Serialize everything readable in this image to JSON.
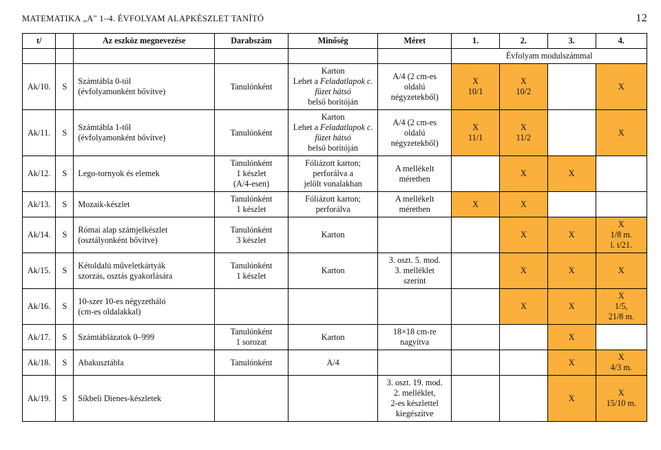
{
  "header": {
    "left": "MATEMATIKA „A\" 1–4. ÉVFOLYAM ALAPKÉSZLET TANÍTÓ",
    "page": "12"
  },
  "columns": {
    "c0": "t/",
    "c1": "",
    "c2": "Az eszköz megnevezése",
    "c3": "Darabszám",
    "c4": "Minőség",
    "c5": "Méret",
    "c6": "1.",
    "c7": "2.",
    "c8": "3.",
    "c9": "4."
  },
  "super_marks": "Évfolyam modulszámmal",
  "rows": [
    {
      "code": "Ak/10.",
      "cat": "S",
      "name": "Számtábla 0-tól\n(évfolyamonként bővítve)",
      "qty": "Tanulónként",
      "quality": "Karton\nLehet a Feladatlapok c. füzet hátsó\nbelső borítóján",
      "size": "A/4 (2 cm-es\noldalú\nnégyzetekből)",
      "m1": "X\n10/1",
      "m2": "X\n10/2",
      "m3": "",
      "m4": "X"
    },
    {
      "code": "Ak/11.",
      "cat": "S",
      "name": "Számtábla 1-től\n(évfolyamonként bővítve)",
      "qty": "Tanulónként",
      "quality": "Karton\nLehet a Feladatlapok c. füzet hátsó\nbelső borítóján",
      "size": "A/4 (2 cm-es\noldalú\nnégyzetekből)",
      "m1": "X\n11/1",
      "m2": "X\n11/2",
      "m3": "",
      "m4": "X"
    },
    {
      "code": "Ak/12.",
      "cat": "S",
      "name": "Lego-tornyok és elemek",
      "qty": "Tanulónként\n1 készlet\n(A/4-esen)",
      "quality": "Fóliázott karton;\nperforálva a\njelölt vonalakban",
      "size": "A mellékelt\nméretben",
      "m1": "",
      "m2": "X",
      "m3": "X",
      "m4": ""
    },
    {
      "code": "Ak/13.",
      "cat": "S",
      "name": "Mozaik-készlet",
      "qty": "Tanulónként\n1 készlet",
      "quality": "Fóliázott karton;\nperforálva",
      "size": "A mellékelt\nméretben",
      "m1": "X",
      "m2": "X",
      "m3": "",
      "m4": ""
    },
    {
      "code": "Ak/14.",
      "cat": "S",
      "name": "Római alap számjelkészlet\n(osztályonként bővítve)",
      "qty": "Tanulónként\n3 készlet",
      "quality": "Karton",
      "size": "",
      "m1": "",
      "m2": "X",
      "m3": "X",
      "m4": "X\n1/8 m.\nl. t/21."
    },
    {
      "code": "Ak/15.",
      "cat": "S",
      "name": "Kétoldalú műveletkártyák\nszorzás, osztás gyakorlására",
      "qty": "Tanulónként\n1 készlet",
      "quality": "Karton",
      "size": "3. oszt. 5. mod.\n3. melléklet\nszerint",
      "m1": "",
      "m2": "X",
      "m3": "X",
      "m4": "X"
    },
    {
      "code": "Ak/16.",
      "cat": "S",
      "name": "10-szer 10-es négyzetháló\n(cm-es oldalakkal)",
      "qty": "",
      "quality": "",
      "size": "",
      "m1": "",
      "m2": "X",
      "m3": "X",
      "m4": "X\n1/5,\n21/8 m."
    },
    {
      "code": "Ak/17.",
      "cat": "S",
      "name": "Számtáblázatok 0–999",
      "qty": "Tanulónként\n1 sorozat",
      "quality": "Karton",
      "size": "18×18 cm-re\nnagyítva",
      "m1": "",
      "m2": "",
      "m3": "X",
      "m4": ""
    },
    {
      "code": "Ak/18.",
      "cat": "S",
      "name": "Abakusztábla",
      "qty": "Tanulónként",
      "quality": "A/4",
      "size": "",
      "m1": "",
      "m2": "",
      "m3": "X",
      "m4": "X\n4/3 m."
    },
    {
      "code": "Ak/19.",
      "cat": "S",
      "name": "Síkbeli Dienes-készletek",
      "qty": "",
      "quality": "",
      "size": "3. oszt. 19. mod.\n2. melléklet,\n2-es készlettel\nkiegészítve",
      "m1": "",
      "m2": "",
      "m3": "X",
      "m4": "X\n15/10 m."
    }
  ],
  "styles": {
    "orange": "#fbb03b",
    "border": "#000000",
    "text": "#111111",
    "font_body_pt": 12,
    "font_header_pt": 13
  }
}
